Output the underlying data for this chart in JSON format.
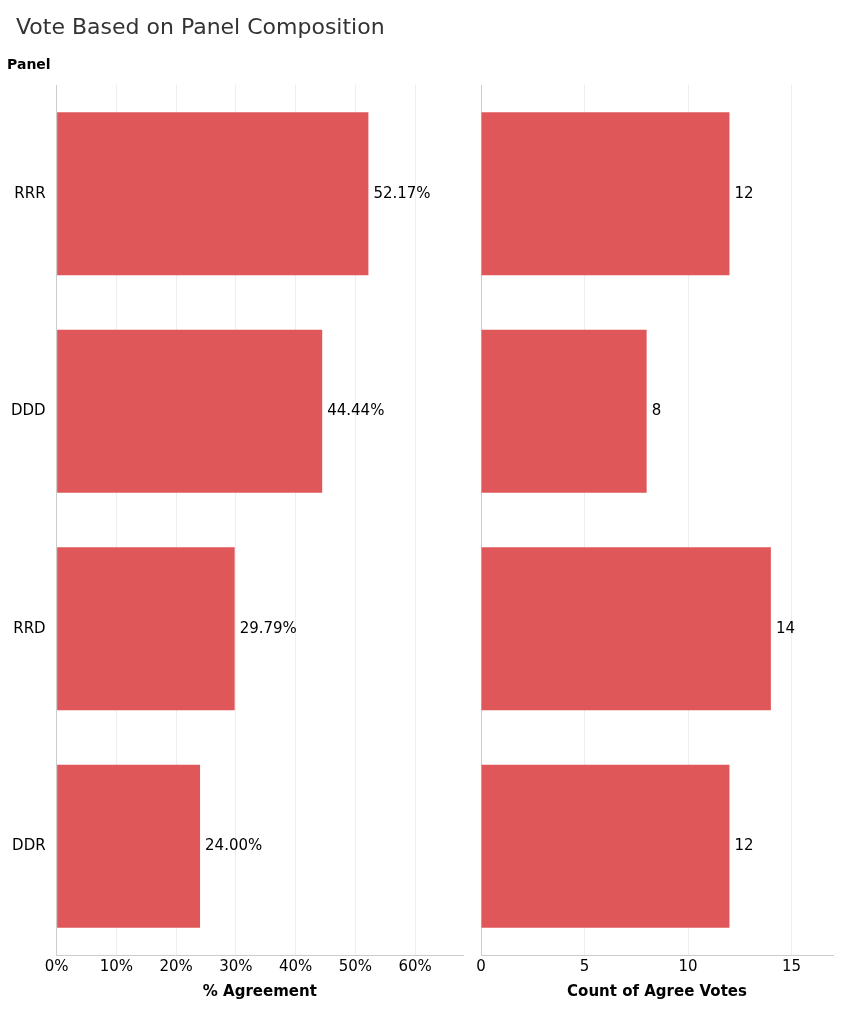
{
  "chart_data": [
    {
      "type": "bar",
      "orientation": "horizontal",
      "title": "Vote Based on Panel Composition",
      "ylabel": "Panel",
      "xlabel": "% Agreement",
      "categories": [
        "RRR",
        "DDD",
        "RRD",
        "DDR"
      ],
      "color": "#e05759",
      "values": [
        52.17,
        44.44,
        29.79,
        24.0
      ],
      "value_labels": [
        "52.17%",
        "44.44%",
        "29.79%",
        "24.00%"
      ],
      "xlim": [
        0,
        68
      ],
      "xticks": [
        {
          "value": 0,
          "label": "0%"
        },
        {
          "value": 10,
          "label": "10%"
        },
        {
          "value": 20,
          "label": "20%"
        },
        {
          "value": 30,
          "label": "30%"
        },
        {
          "value": 40,
          "label": "40%"
        },
        {
          "value": 50,
          "label": "50%"
        },
        {
          "value": 60,
          "label": "60%"
        }
      ],
      "grid": "x"
    },
    {
      "type": "bar",
      "orientation": "horizontal",
      "xlabel": "Count of Agree Votes",
      "categories": [
        "RRR",
        "DDD",
        "RRD",
        "DDR"
      ],
      "color": "#e05759",
      "values": [
        12,
        8,
        14,
        12
      ],
      "data_labels": true,
      "xlim": [
        0,
        17
      ],
      "xticks": [
        0,
        5,
        10,
        15
      ],
      "grid": "x",
      "tick_labels": "x"
    }
  ]
}
